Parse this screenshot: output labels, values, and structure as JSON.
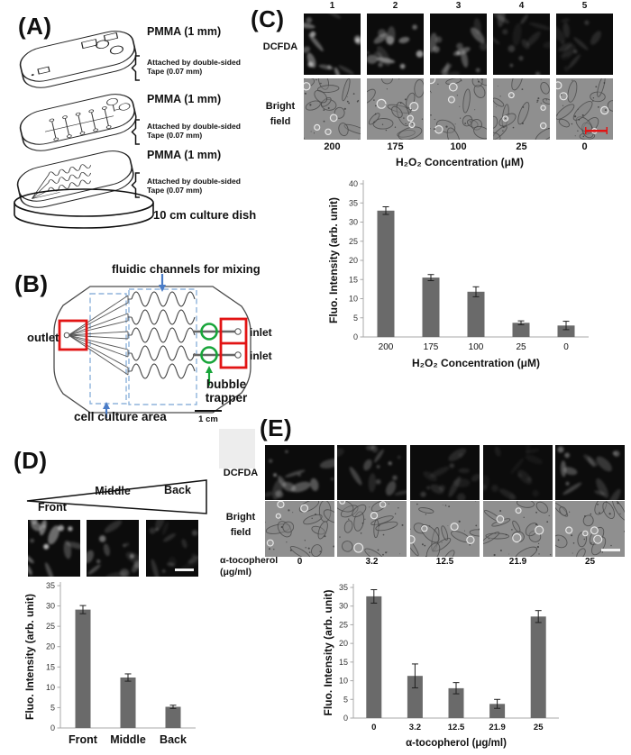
{
  "figure": {
    "panel_a": {
      "label": "(A)",
      "pmma_labels": [
        "PMMA (1 mm)",
        "PMMA (1 mm)",
        "PMMA (1 mm)"
      ],
      "tape_line1": "Attached by double-sided",
      "tape_line2": "Tape (0.07 mm)",
      "dish_label": "10 cm culture dish"
    },
    "panel_b": {
      "label": "(B)",
      "fluidic_label": "fluidic channels for mixing",
      "outlet_label": "outlet",
      "inlet_labels": [
        "inlet",
        "inlet"
      ],
      "bubble_line1": "bubble",
      "bubble_line2": "trapper",
      "cell_culture_label": "cell culture area",
      "scalebar_label": "1 cm"
    },
    "panel_c": {
      "label": "(C)",
      "column_numbers": [
        "1",
        "2",
        "3",
        "4",
        "5"
      ],
      "dcfda_label": "DCFDA",
      "bright_line1": "Bright",
      "bright_line2": "field",
      "concentration_labels": [
        "200",
        "175",
        "100",
        "25",
        "0"
      ],
      "axis_label": "H₂O₂ Concentration (μM)",
      "dcfda_intensities": [
        0.9,
        0.78,
        0.6,
        0.32,
        0.22
      ]
    },
    "panel_d": {
      "label": "(D)",
      "front_label": "Front",
      "middle_label": "Middle",
      "back_label": "Back",
      "image_intensities": [
        0.85,
        0.5,
        0.28
      ]
    },
    "panel_e": {
      "label": "(E)",
      "dcfda_label": "DCFDA",
      "bright_line1": "Bright",
      "bright_line2": "field",
      "axis_line1": "α-tocopherol",
      "axis_line2": "(μg/ml)",
      "concentration_labels": [
        "0",
        "3.2",
        "12.5",
        "21.9",
        "25"
      ],
      "dcfda_intensities": [
        0.62,
        0.5,
        0.22,
        0.16,
        0.55
      ]
    },
    "colors": {
      "bar": "#6a6a6a",
      "error_bar": "#1f1f1f",
      "annotation_red": "#e21414",
      "annotation_green": "#18a53a",
      "annotation_blue": "#4a7cc7",
      "dashed_outline_blue": "#8fb4dc",
      "scalebar_red": "#e21414",
      "scalebar_white": "#f2f2f2"
    }
  },
  "chart_data": [
    {
      "id": "c",
      "type": "bar",
      "categories": [
        "200",
        "175",
        "100",
        "25",
        "0"
      ],
      "values": [
        33,
        15.5,
        11.8,
        3.7,
        3.0
      ],
      "errors": [
        1.0,
        0.8,
        1.3,
        0.5,
        1.1
      ],
      "title": "",
      "xlabel": "H₂O₂ Concentration (μM)",
      "ylabel": "Fluo. Intensity (arb. unit)",
      "ylim": [
        0,
        40
      ],
      "ystep": 5,
      "yticks": [
        0,
        5,
        10,
        15,
        20,
        25,
        30,
        35,
        40
      ],
      "grid": false,
      "bar_color": "#6a6a6a"
    },
    {
      "id": "d",
      "type": "bar",
      "categories": [
        "Front",
        "Middle",
        "Back"
      ],
      "values": [
        29.1,
        12.4,
        5.2
      ],
      "errors": [
        1.0,
        0.9,
        0.4
      ],
      "title": "",
      "xlabel": "",
      "ylabel": "Fluo. Intensity (arb. unit)",
      "ylim": [
        0,
        35
      ],
      "ystep": 5,
      "yticks": [
        0,
        5,
        10,
        15,
        20,
        25,
        30,
        35
      ],
      "grid": false,
      "bar_color": "#6a6a6a"
    },
    {
      "id": "e",
      "type": "bar",
      "categories": [
        "0",
        "3.2",
        "12.5",
        "21.9",
        "25"
      ],
      "values": [
        32.6,
        11.3,
        8.0,
        3.8,
        27.2
      ],
      "errors": [
        1.8,
        3.2,
        1.5,
        1.2,
        1.6
      ],
      "title": "",
      "xlabel": "α-tocopherol (μg/ml)",
      "ylabel": "Fluo. Intensity (arb. unit)",
      "ylim": [
        0,
        35
      ],
      "ystep": 5,
      "yticks": [
        0,
        5,
        10,
        15,
        20,
        25,
        30,
        35
      ],
      "grid": false,
      "bar_color": "#6a6a6a"
    }
  ]
}
